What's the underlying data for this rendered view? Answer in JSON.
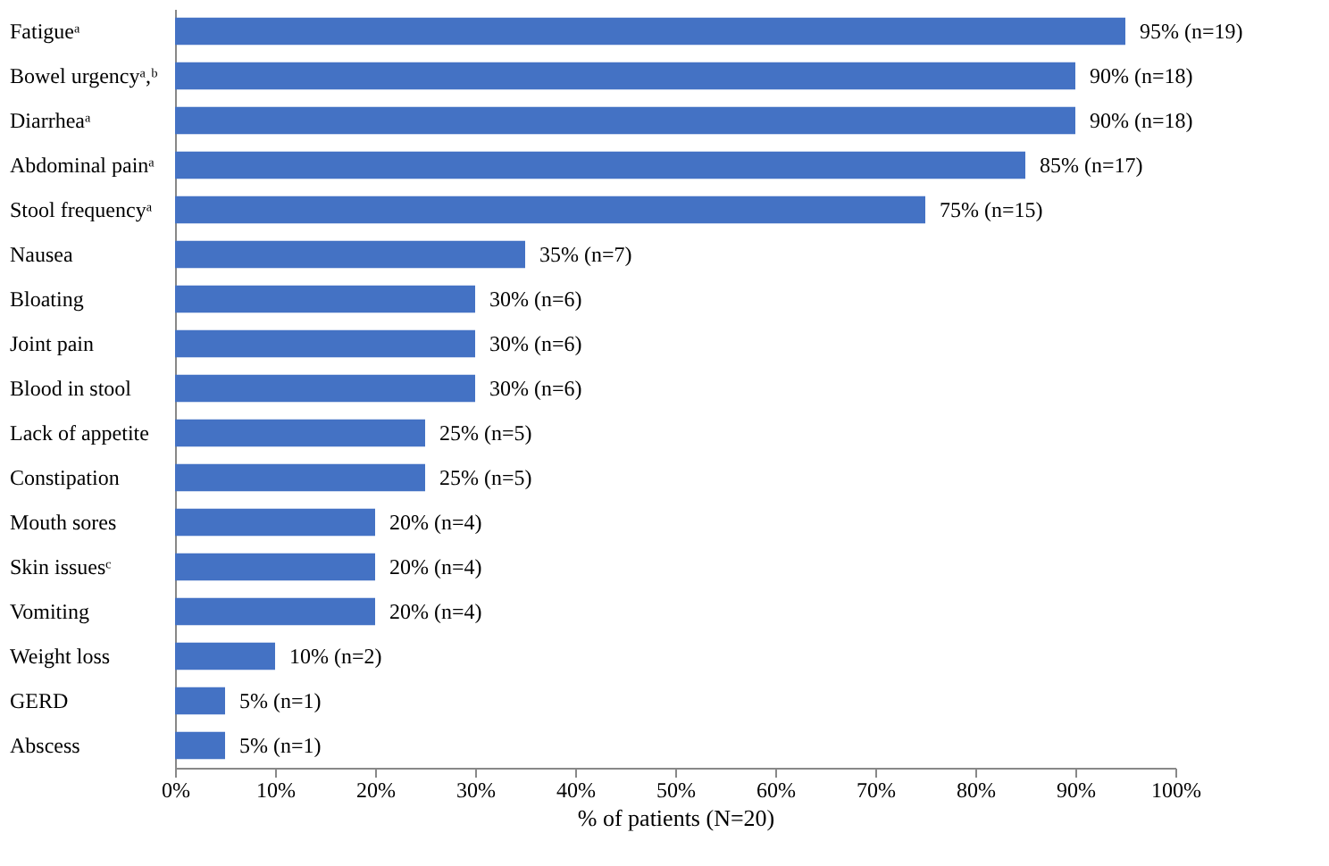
{
  "chart_data": {
    "type": "bar",
    "orientation": "horizontal",
    "xlabel": "% of patients (N=20)",
    "categories": [
      "Fatigueᵃ",
      "Bowel urgencyᵃ,ᵇ",
      "Diarrheaᵃ",
      "Abdominal painᵃ",
      "Stool frequencyᵃ",
      "Nausea",
      "Bloating",
      "Joint pain",
      "Blood in stool",
      "Lack of appetite",
      "Constipation",
      "Mouth sores",
      "Skin issuesᶜ",
      "Vomiting",
      "Weight loss",
      "GERD",
      "Abscess"
    ],
    "values": [
      95,
      90,
      90,
      85,
      75,
      35,
      30,
      30,
      30,
      25,
      25,
      20,
      20,
      20,
      10,
      5,
      5
    ],
    "value_labels": [
      "95% (n=19)",
      "90% (n=18)",
      "90% (n=18)",
      "85% (n=17)",
      "75% (n=15)",
      "35% (n=7)",
      "30% (n=6)",
      "30% (n=6)",
      "30% (n=6)",
      "25% (n=5)",
      "25% (n=5)",
      "20% (n=4)",
      "20% (n=4)",
      "20% (n=4)",
      "10% (n=2)",
      "5% (n=1)",
      "5% (n=1)"
    ],
    "color": "#4472c4",
    "xlim": [
      0,
      100
    ],
    "xticks": [
      {
        "value": 0,
        "label": "0%"
      },
      {
        "value": 10,
        "label": "10%"
      },
      {
        "value": 20,
        "label": "20%"
      },
      {
        "value": 30,
        "label": "30%"
      },
      {
        "value": 40,
        "label": "40%"
      },
      {
        "value": 50,
        "label": "50%"
      },
      {
        "value": 60,
        "label": "60%"
      },
      {
        "value": 70,
        "label": "70%"
      },
      {
        "value": 80,
        "label": "80%"
      },
      {
        "value": 90,
        "label": "90%"
      },
      {
        "value": 100,
        "label": "100%"
      }
    ],
    "grid": false
  }
}
